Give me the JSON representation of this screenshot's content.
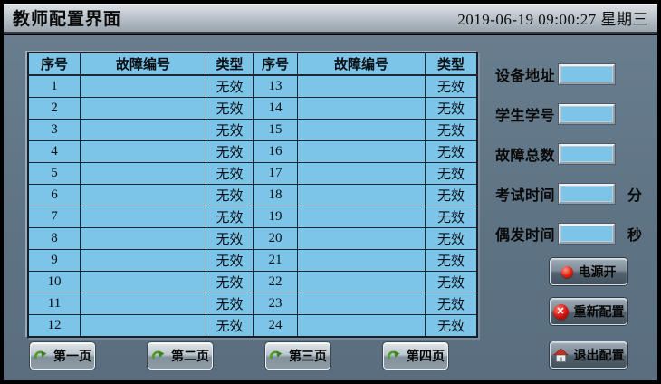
{
  "title_bar": {
    "title": "教师配置界面",
    "datetime": "2019-06-19 09:00:27 星期三"
  },
  "table": {
    "headers": [
      "序号",
      "故障编号",
      "类型",
      "序号",
      "故障编号",
      "类型"
    ],
    "rows": [
      {
        "seq_left": "1",
        "fault_left": "",
        "type_left": "无效",
        "seq_right": "13",
        "fault_right": "",
        "type_right": "无效"
      },
      {
        "seq_left": "2",
        "fault_left": "",
        "type_left": "无效",
        "seq_right": "14",
        "fault_right": "",
        "type_right": "无效"
      },
      {
        "seq_left": "3",
        "fault_left": "",
        "type_left": "无效",
        "seq_right": "15",
        "fault_right": "",
        "type_right": "无效"
      },
      {
        "seq_left": "4",
        "fault_left": "",
        "type_left": "无效",
        "seq_right": "16",
        "fault_right": "",
        "type_right": "无效"
      },
      {
        "seq_left": "5",
        "fault_left": "",
        "type_left": "无效",
        "seq_right": "17",
        "fault_right": "",
        "type_right": "无效"
      },
      {
        "seq_left": "6",
        "fault_left": "",
        "type_left": "无效",
        "seq_right": "18",
        "fault_right": "",
        "type_right": "无效"
      },
      {
        "seq_left": "7",
        "fault_left": "",
        "type_left": "无效",
        "seq_right": "19",
        "fault_right": "",
        "type_right": "无效"
      },
      {
        "seq_left": "8",
        "fault_left": "",
        "type_left": "无效",
        "seq_right": "20",
        "fault_right": "",
        "type_right": "无效"
      },
      {
        "seq_left": "9",
        "fault_left": "",
        "type_left": "无效",
        "seq_right": "21",
        "fault_right": "",
        "type_right": "无效"
      },
      {
        "seq_left": "10",
        "fault_left": "",
        "type_left": "无效",
        "seq_right": "22",
        "fault_right": "",
        "type_right": "无效"
      },
      {
        "seq_left": "11",
        "fault_left": "",
        "type_left": "无效",
        "seq_right": "23",
        "fault_right": "",
        "type_right": "无效"
      },
      {
        "seq_left": "12",
        "fault_left": "",
        "type_left": "无效",
        "seq_right": "24",
        "fault_right": "",
        "type_right": "无效"
      }
    ]
  },
  "fields": [
    {
      "label": "设备地址",
      "value": "",
      "unit": ""
    },
    {
      "label": "学生学号",
      "value": "",
      "unit": ""
    },
    {
      "label": "故障总数",
      "value": "",
      "unit": ""
    },
    {
      "label": "考试时间",
      "value": "",
      "unit": "分"
    },
    {
      "label": "偶发时间",
      "value": "",
      "unit": "秒"
    }
  ],
  "action_buttons": {
    "power": {
      "label": "电源开",
      "icon": "power-indicator-red-dot"
    },
    "reconfigure": {
      "label": "重新配置",
      "icon": "red-circle-x"
    },
    "exit": {
      "label": "退出配置",
      "icon": "home"
    }
  },
  "page_buttons": [
    {
      "label": "第一页",
      "icon": "green-curved-arrow"
    },
    {
      "label": "第二页",
      "icon": "green-curved-arrow"
    },
    {
      "label": "第三页",
      "icon": "green-curved-arrow"
    },
    {
      "label": "第四页",
      "icon": "green-curved-arrow"
    }
  ],
  "colors": {
    "cell_blue": "#7cc4e8",
    "background": "#5e7384",
    "titlebar_light": "#dde2e7",
    "accent_red": "#d01410",
    "arrow_green": "#4f9c22"
  }
}
